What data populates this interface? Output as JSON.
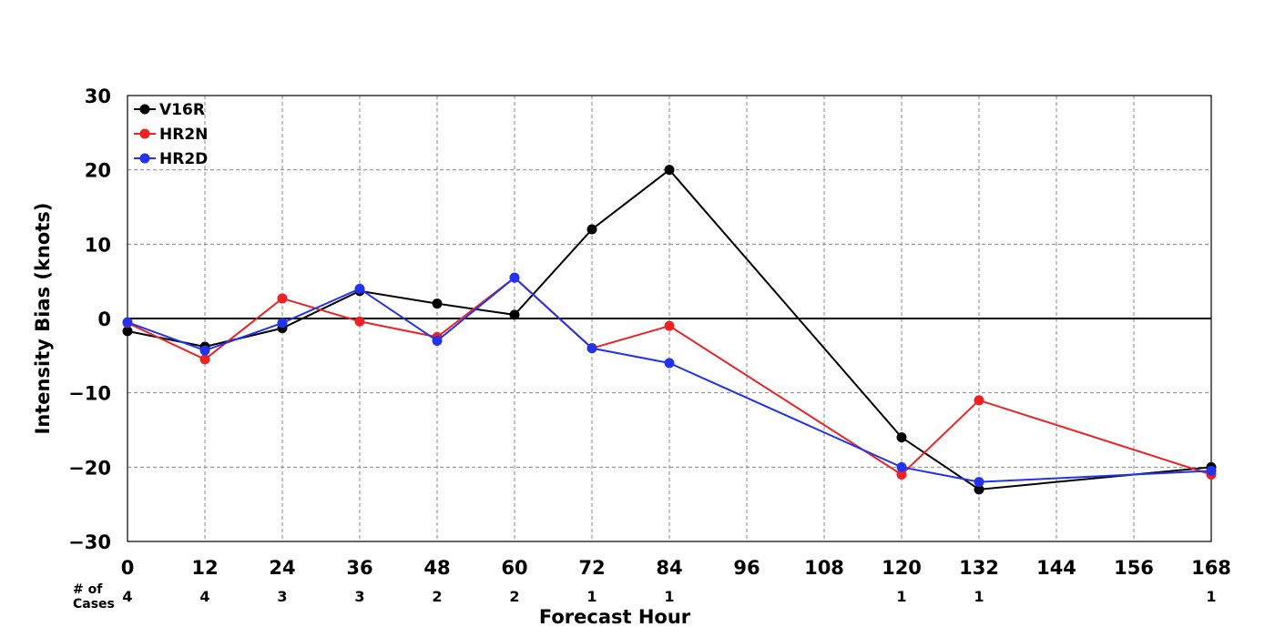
{
  "chart_data": {
    "type": "line",
    "title": "",
    "xlabel": "Forecast Hour",
    "ylabel": "Intensity Bias (knots)",
    "xlim": [
      0,
      168
    ],
    "ylim": [
      -30,
      30
    ],
    "x_ticks": [
      0,
      12,
      24,
      36,
      48,
      60,
      72,
      84,
      96,
      108,
      120,
      132,
      144,
      156,
      168
    ],
    "x_tick_labels": [
      "0",
      "12",
      "24",
      "36",
      "48",
      "60",
      "72",
      "84",
      "96",
      "108",
      "120",
      "132",
      "144",
      "156",
      "168"
    ],
    "y_ticks": [
      30,
      20,
      10,
      0,
      -10,
      -20,
      -30
    ],
    "y_tick_labels": [
      "30",
      "20",
      "10",
      "0",
      "−10",
      "−20",
      "−30"
    ],
    "grid": true,
    "zero_line": true,
    "legend_position": "top-left",
    "cases_label": "# of\nCases",
    "cases": [
      {
        "x": 0,
        "n": "4"
      },
      {
        "x": 12,
        "n": "4"
      },
      {
        "x": 24,
        "n": "3"
      },
      {
        "x": 36,
        "n": "3"
      },
      {
        "x": 48,
        "n": "2"
      },
      {
        "x": 60,
        "n": "2"
      },
      {
        "x": 72,
        "n": "1"
      },
      {
        "x": 84,
        "n": "1"
      },
      {
        "x": 120,
        "n": "1"
      },
      {
        "x": 132,
        "n": "1"
      },
      {
        "x": 168,
        "n": "1"
      }
    ],
    "series": [
      {
        "name": "V16R",
        "color": "#000000",
        "x": [
          0,
          12,
          24,
          36,
          48,
          60,
          72,
          84,
          120,
          132,
          168
        ],
        "y": [
          -1.7,
          -3.8,
          -1.3,
          3.7,
          2,
          0.5,
          12,
          20,
          -16,
          -23,
          -20
        ]
      },
      {
        "name": "HR2N",
        "color": "#ee2222",
        "x": [
          0,
          12,
          24,
          36,
          48,
          60,
          72,
          84,
          120,
          132,
          168
        ],
        "y": [
          -0.6,
          -5.5,
          2.7,
          -0.4,
          -2.5,
          5.5,
          -4,
          -1,
          -21,
          -11,
          -21
        ]
      },
      {
        "name": "HR2D",
        "color": "#2233ee",
        "x": [
          0,
          12,
          24,
          36,
          48,
          60,
          72,
          84,
          120,
          132,
          168
        ],
        "y": [
          -0.5,
          -4.3,
          -0.6,
          4,
          -3,
          5.5,
          -4,
          -6,
          -20,
          -22,
          -20.5
        ]
      }
    ]
  }
}
